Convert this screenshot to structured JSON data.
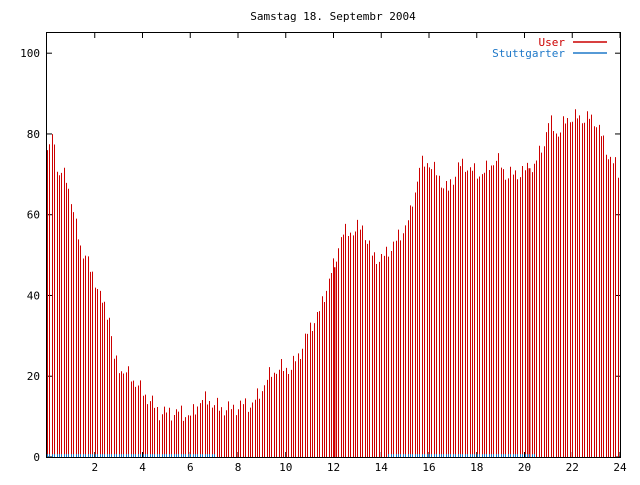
{
  "chart_data": {
    "type": "bar",
    "title": "Samstag 18. Septembr 2004",
    "xlabel": "",
    "ylabel": "",
    "xlim": [
      0,
      24
    ],
    "ylim": [
      0,
      105
    ],
    "x_ticks": [
      2,
      4,
      6,
      8,
      10,
      12,
      14,
      16,
      18,
      20,
      22,
      24
    ],
    "y_ticks": [
      0,
      20,
      40,
      60,
      80,
      100
    ],
    "grid": false,
    "legend_position": "top-right",
    "series": [
      {
        "name": "User",
        "color": "#cc0000",
        "style": "impulses",
        "anchors": [
          [
            0.0,
            76
          ],
          [
            0.3,
            79
          ],
          [
            0.4,
            71
          ],
          [
            0.8,
            69
          ],
          [
            1.0,
            64
          ],
          [
            1.2,
            57
          ],
          [
            1.4,
            52
          ],
          [
            1.6,
            50
          ],
          [
            1.8,
            46
          ],
          [
            2.0,
            44
          ],
          [
            2.3,
            38
          ],
          [
            2.6,
            35
          ],
          [
            2.8,
            24
          ],
          [
            3.2,
            21
          ],
          [
            3.5,
            20
          ],
          [
            4.0,
            16
          ],
          [
            4.3,
            14
          ],
          [
            4.7,
            11
          ],
          [
            5.2,
            11
          ],
          [
            5.6,
            11
          ],
          [
            6.0,
            10
          ],
          [
            6.4,
            14
          ],
          [
            6.8,
            14
          ],
          [
            7.2,
            12
          ],
          [
            7.8,
            12
          ],
          [
            8.2,
            13
          ],
          [
            8.6,
            13
          ],
          [
            9.0,
            17
          ],
          [
            9.4,
            21
          ],
          [
            9.8,
            22
          ],
          [
            10.2,
            22
          ],
          [
            10.6,
            26
          ],
          [
            11.0,
            32
          ],
          [
            11.4,
            36
          ],
          [
            11.8,
            44
          ],
          [
            12.0,
            47
          ],
          [
            12.3,
            55
          ],
          [
            12.8,
            56
          ],
          [
            13.2,
            57
          ],
          [
            13.6,
            50
          ],
          [
            14.0,
            49
          ],
          [
            14.4,
            52
          ],
          [
            14.8,
            55
          ],
          [
            15.2,
            60
          ],
          [
            15.6,
            72
          ],
          [
            16.0,
            73
          ],
          [
            16.4,
            69
          ],
          [
            16.8,
            66
          ],
          [
            17.2,
            72
          ],
          [
            17.6,
            72
          ],
          [
            18.0,
            70
          ],
          [
            18.4,
            71
          ],
          [
            18.8,
            74
          ],
          [
            19.2,
            70
          ],
          [
            19.6,
            70
          ],
          [
            20.0,
            71
          ],
          [
            20.4,
            72
          ],
          [
            20.8,
            78
          ],
          [
            21.0,
            83
          ],
          [
            21.4,
            80
          ],
          [
            21.8,
            84
          ],
          [
            22.2,
            84
          ],
          [
            22.6,
            84
          ],
          [
            23.0,
            83
          ],
          [
            23.4,
            76
          ],
          [
            23.8,
            72
          ],
          [
            24.0,
            68
          ]
        ],
        "values_note": "hourly outline"
      },
      {
        "name": "Stuttgarter",
        "color": "#1e78c8",
        "style": "impulses",
        "segments": [
          [
            0,
            7
          ],
          [
            14.3,
            20.5
          ]
        ],
        "value": 0.7
      }
    ]
  }
}
